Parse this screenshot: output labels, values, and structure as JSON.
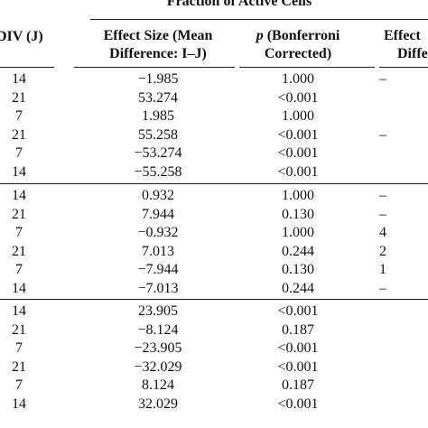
{
  "header": {
    "group_title": "Fraction of Active Cells",
    "col_div": "DIV (J)",
    "col_effect_line1": "Effect Size (Mean",
    "col_effect_line2": "Difference: I–J)",
    "col_p_symbol": "p",
    "col_p_line1_rest": " (Bonferroni",
    "col_p_line2": "Corrected)",
    "col_effect2_line1": "Effect",
    "col_effect2_line2": "Diffe"
  },
  "sections": [
    {
      "rows": [
        {
          "div": "14",
          "effect": "−1.985",
          "p": "1.000",
          "e2": "–"
        },
        {
          "div": "21",
          "effect": "53.274",
          "p": "<0.001",
          "e2": ""
        },
        {
          "div": "7",
          "effect": "1.985",
          "p": "1.000",
          "e2": ""
        },
        {
          "div": "21",
          "effect": "55.258",
          "p": "<0.001",
          "e2": "–"
        },
        {
          "div": "7",
          "effect": "−53.274",
          "p": "<0.001",
          "e2": ""
        },
        {
          "div": "14",
          "effect": "−55.258",
          "p": "<0.001",
          "e2": ""
        }
      ]
    },
    {
      "rows": [
        {
          "div": "14",
          "effect": "0.932",
          "p": "1.000",
          "e2": "–"
        },
        {
          "div": "21",
          "effect": "7.944",
          "p": "0.130",
          "e2": "–"
        },
        {
          "div": "7",
          "effect": "−0.932",
          "p": "1.000",
          "e2": "4"
        },
        {
          "div": "21",
          "effect": "7.013",
          "p": "0.244",
          "e2": "2"
        },
        {
          "div": "7",
          "effect": "−7.944",
          "p": "0.130",
          "e2": "1"
        },
        {
          "div": "14",
          "effect": "−7.013",
          "p": "0.244",
          "e2": "–"
        }
      ]
    },
    {
      "rows": [
        {
          "div": "14",
          "effect": "23.905",
          "p": "<0.001",
          "e2": ""
        },
        {
          "div": "21",
          "effect": "−8.124",
          "p": "0.187",
          "e2": ""
        },
        {
          "div": "7",
          "effect": "−23.905",
          "p": "<0.001",
          "e2": ""
        },
        {
          "div": "21",
          "effect": "−32.029",
          "p": "<0.001",
          "e2": ""
        },
        {
          "div": "7",
          "effect": "8.124",
          "p": "0.187",
          "e2": ""
        },
        {
          "div": "14",
          "effect": "32.029",
          "p": "<0.001",
          "e2": ""
        }
      ]
    }
  ]
}
